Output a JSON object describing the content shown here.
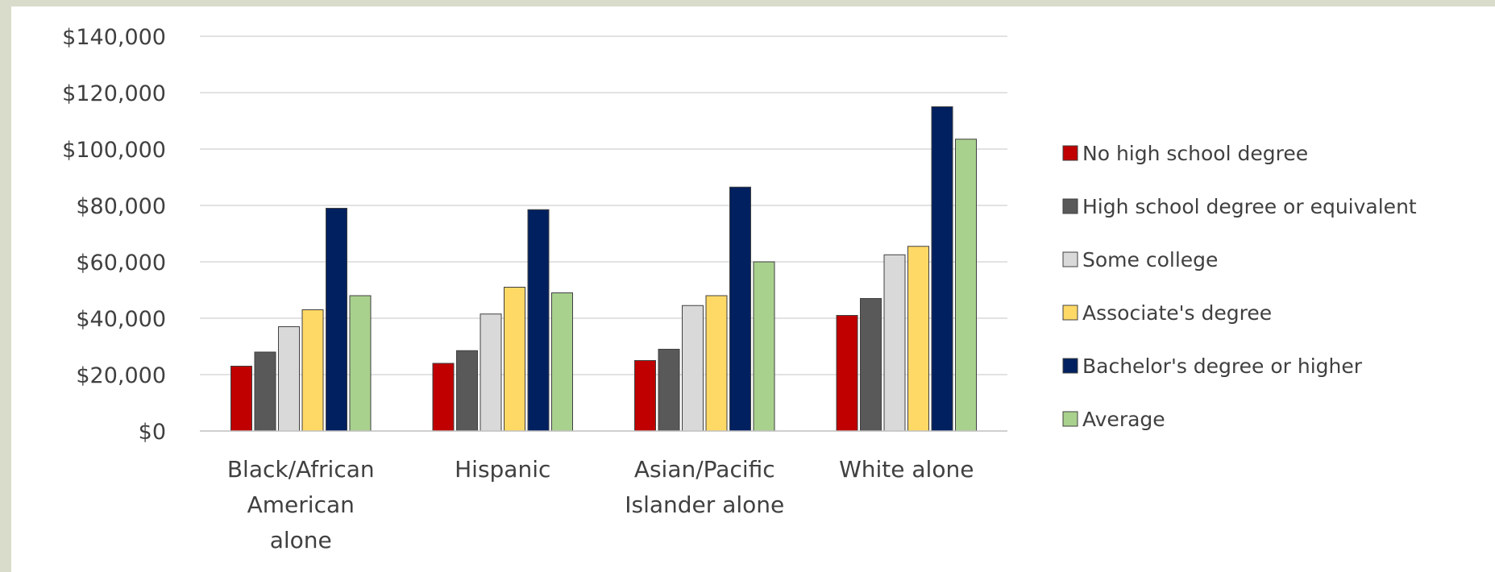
{
  "chart_data": {
    "type": "bar",
    "title": "",
    "xlabel": "",
    "ylabel": "",
    "ylim": [
      0,
      140000
    ],
    "yticks": [
      0,
      20000,
      40000,
      60000,
      80000,
      100000,
      120000,
      140000
    ],
    "ytick_labels": [
      "$0",
      "$20,000",
      "$40,000",
      "$60,000",
      "$80,000",
      "$100,000",
      "$120,000",
      "$140,000"
    ],
    "grid": "horizontal",
    "legend_position": "right",
    "categories": [
      [
        "Black/African",
        "American",
        "alone"
      ],
      [
        "Hispanic"
      ],
      [
        "Asian/Pacific",
        "Islander alone"
      ],
      [
        "White alone"
      ]
    ],
    "series": [
      {
        "name": "No high school degree",
        "color": "#c00000",
        "values": [
          23000,
          24000,
          25000,
          41000
        ]
      },
      {
        "name": "High school degree or equivalent",
        "color": "#595959",
        "values": [
          28000,
          28500,
          29000,
          47000
        ]
      },
      {
        "name": "Some college",
        "color": "#d9d9d9",
        "values": [
          37000,
          41500,
          44500,
          62500
        ]
      },
      {
        "name": "Associate's degree",
        "color": "#ffd966",
        "values": [
          43000,
          51000,
          48000,
          65500
        ]
      },
      {
        "name": "Bachelor's degree or higher",
        "color": "#002060",
        "values": [
          79000,
          78500,
          86500,
          115000
        ]
      },
      {
        "name": "Average",
        "color": "#a9d18e",
        "values": [
          48000,
          49000,
          60000,
          103500
        ]
      }
    ]
  }
}
